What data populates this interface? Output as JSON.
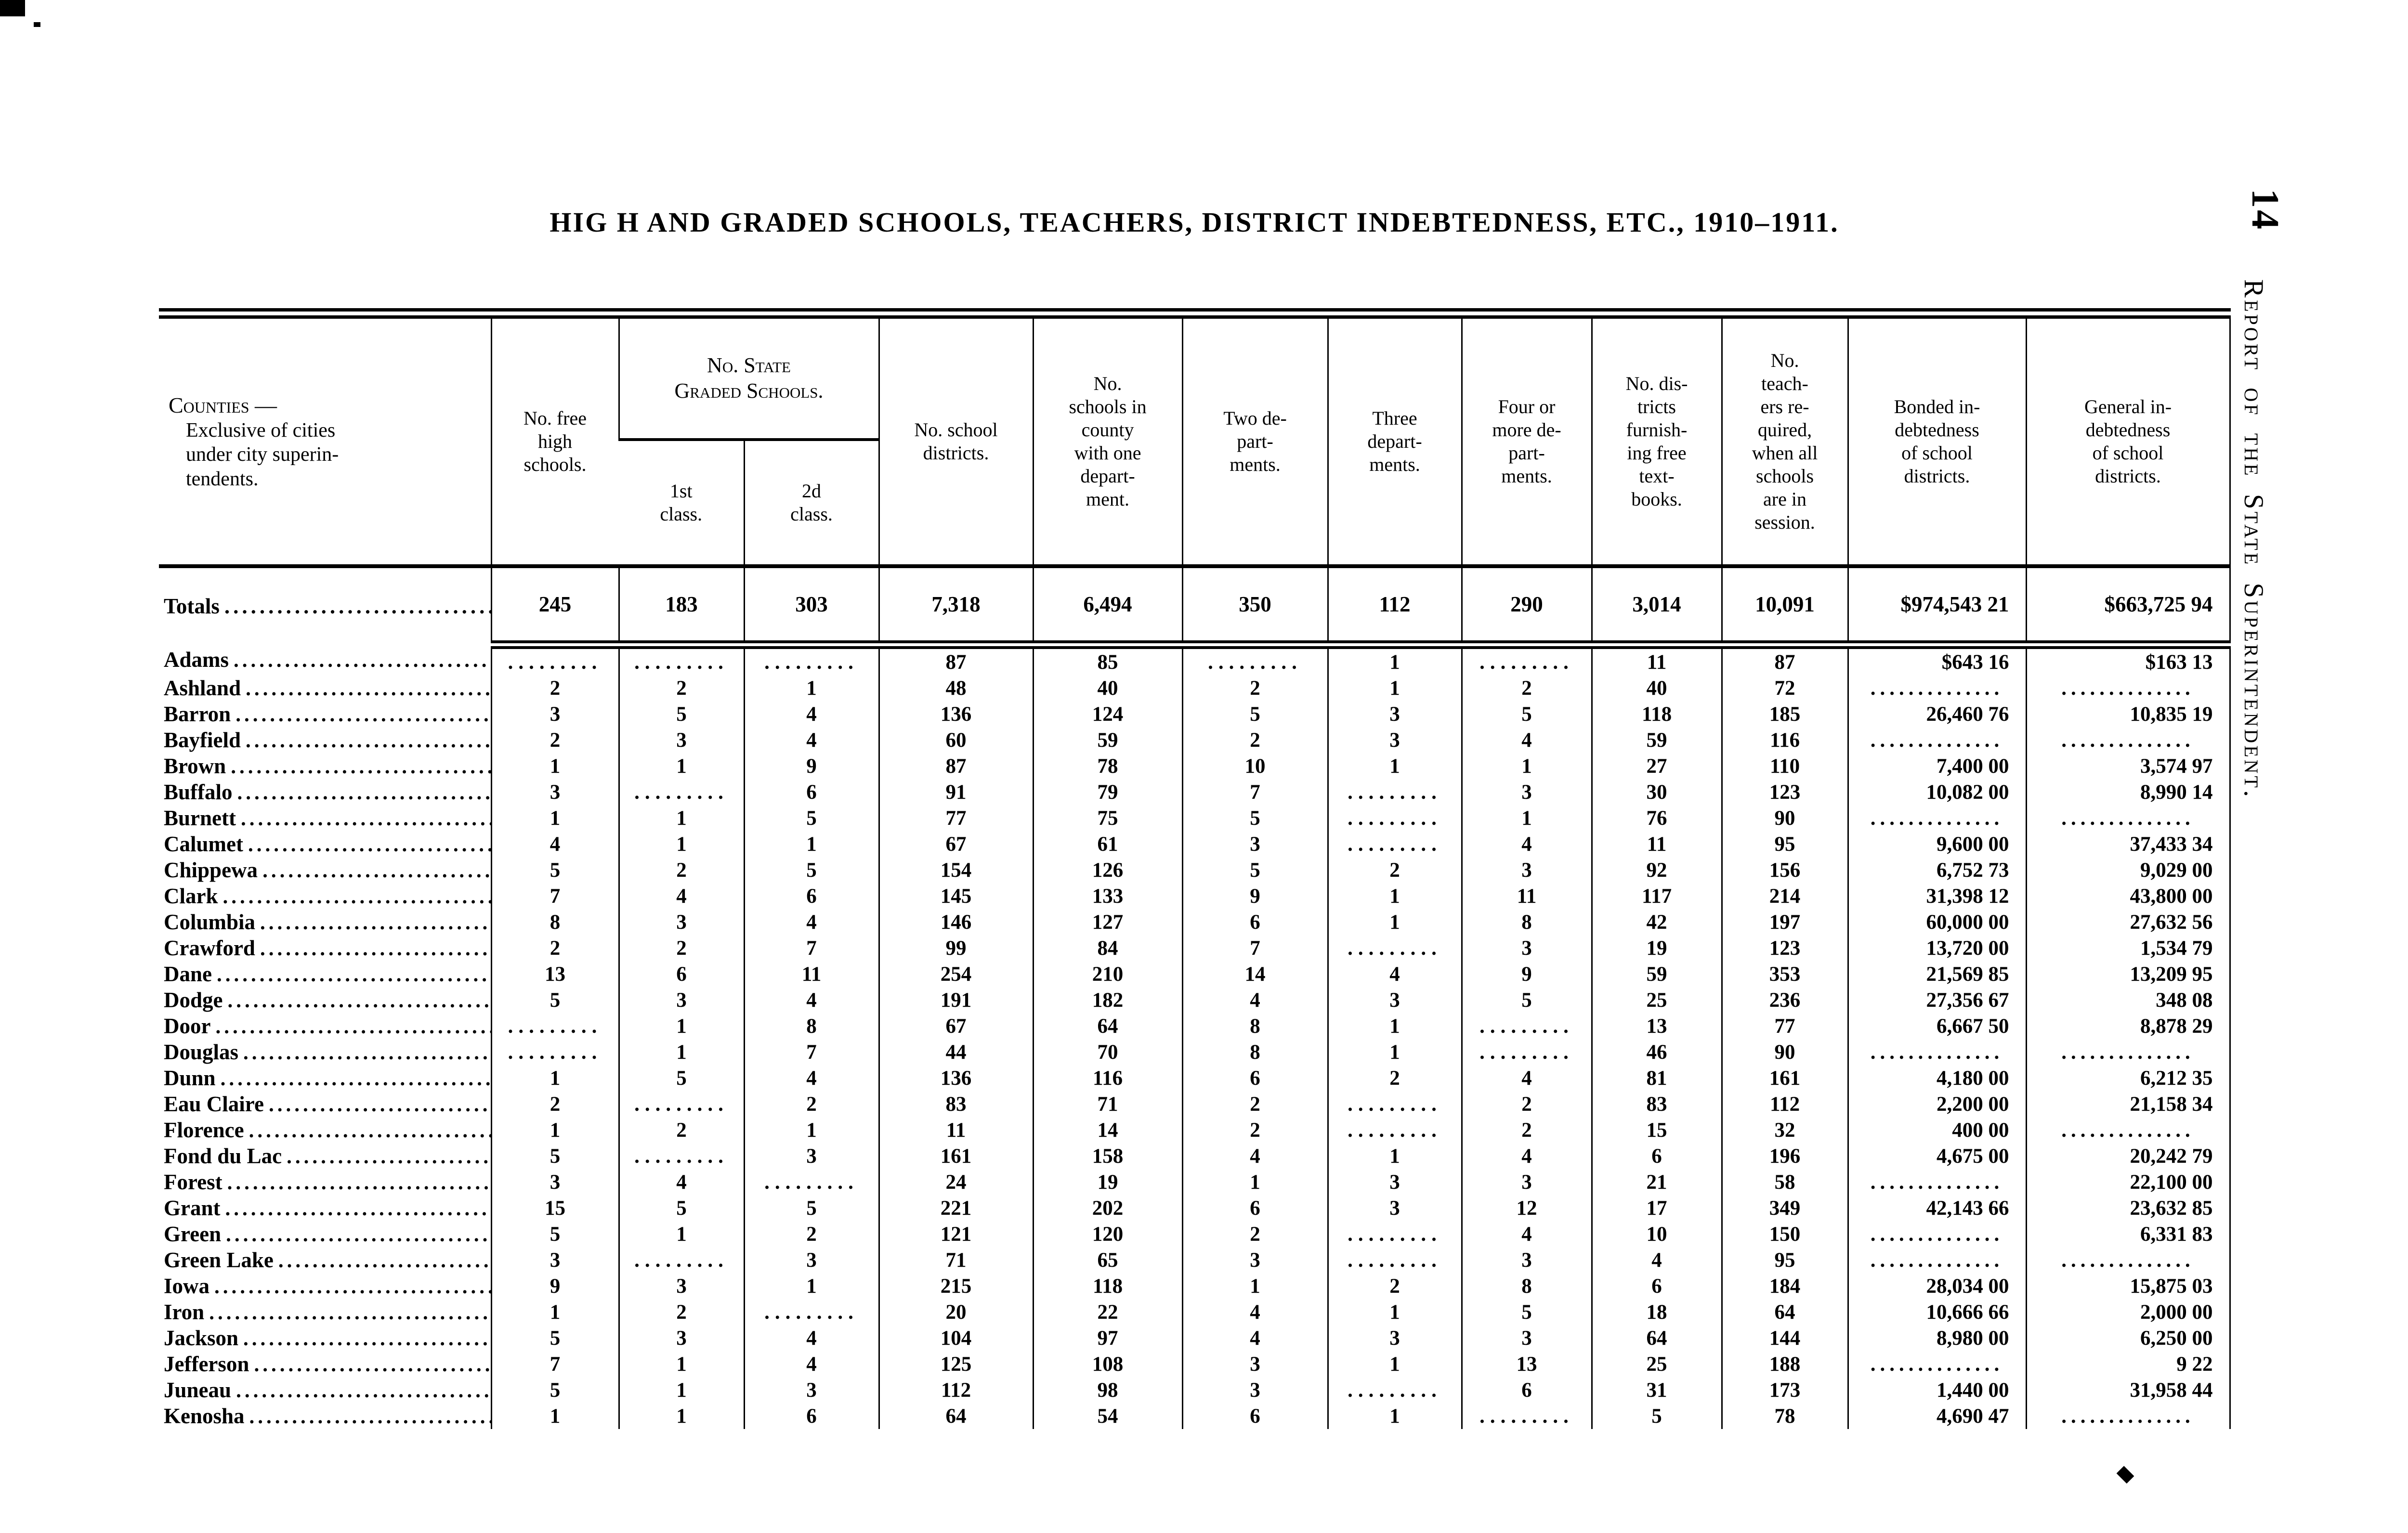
{
  "page": {
    "title": "HIG H AND GRADED SCHOOLS, TEACHERS, DISTRICT INDEBTEDNESS, ETC., 1910–1911.",
    "page_number": "14",
    "side_caption": "Report of the State Superintendent."
  },
  "table": {
    "header": {
      "counties": "Counties —\nExclusive of cities\nunder city superin-\ntendents.",
      "free_high": "No. free\nhigh\nschools.",
      "state_graded_group": "No. State\nGraded Schools.",
      "first_class": "1st\nclass.",
      "second_class": "2d\nclass.",
      "districts": "No. school\ndistricts.",
      "one_dept": "No.\nschools in\ncounty\nwith one\ndepart-\nment.",
      "two_dept": "Two de-\npart-\nments.",
      "three_dept": "Three\ndepart-\nments.",
      "four_plus": "Four or\nmore de-\npart-\nments.",
      "textbooks": "No. dis-\ntricts\nfurnish-\ning free\ntext-\nbooks.",
      "teachers": "No.\nteach-\ners re-\nquired,\nwhen all\nschools\nare in\nsession.",
      "bonded": "Bonded in-\ndebtedness\nof school\ndistricts.",
      "general": "General in-\ndebtedness\nof school\ndistricts."
    },
    "totals": {
      "name": "Totals",
      "cells": [
        "245",
        "183",
        "303",
        "7,318",
        "6,494",
        "350",
        "112",
        "290",
        "3,014",
        "10,091",
        "$974,543 21",
        "$663,725 94"
      ]
    },
    "rows": [
      {
        "name": "Adams",
        "cells": [
          "",
          "",
          "",
          "87",
          "85",
          "",
          "1",
          "",
          "11",
          "87",
          "$643 16",
          "$163 13"
        ]
      },
      {
        "name": "Ashland",
        "cells": [
          "2",
          "2",
          "1",
          "48",
          "40",
          "2",
          "1",
          "2",
          "40",
          "72",
          "",
          ""
        ]
      },
      {
        "name": "Barron",
        "cells": [
          "3",
          "5",
          "4",
          "136",
          "124",
          "5",
          "3",
          "5",
          "118",
          "185",
          "26,460 76",
          "10,835 19"
        ]
      },
      {
        "name": "Bayfield",
        "cells": [
          "2",
          "3",
          "4",
          "60",
          "59",
          "2",
          "3",
          "4",
          "59",
          "116",
          "",
          ""
        ]
      },
      {
        "name": "Brown",
        "cells": [
          "1",
          "1",
          "9",
          "87",
          "78",
          "10",
          "1",
          "1",
          "27",
          "110",
          "7,400 00",
          "3,574 97"
        ]
      },
      {
        "name": "Buffalo",
        "cells": [
          "3",
          "",
          "6",
          "91",
          "79",
          "7",
          "",
          "3",
          "30",
          "123",
          "10,082 00",
          "8,990 14"
        ]
      },
      {
        "name": "Burnett",
        "cells": [
          "1",
          "1",
          "5",
          "77",
          "75",
          "5",
          "",
          "1",
          "76",
          "90",
          "",
          ""
        ]
      },
      {
        "name": "Calumet",
        "cells": [
          "4",
          "1",
          "1",
          "67",
          "61",
          "3",
          "",
          "4",
          "11",
          "95",
          "9,600 00",
          "37,433 34"
        ]
      },
      {
        "name": "Chippewa",
        "cells": [
          "5",
          "2",
          "5",
          "154",
          "126",
          "5",
          "2",
          "3",
          "92",
          "156",
          "6,752 73",
          "9,029 00"
        ]
      },
      {
        "name": "Clark",
        "cells": [
          "7",
          "4",
          "6",
          "145",
          "133",
          "9",
          "1",
          "11",
          "117",
          "214",
          "31,398 12",
          "43,800 00"
        ]
      },
      {
        "name": "Columbia",
        "cells": [
          "8",
          "3",
          "4",
          "146",
          "127",
          "6",
          "1",
          "8",
          "42",
          "197",
          "60,000 00",
          "27,632 56"
        ]
      },
      {
        "name": "Crawford",
        "cells": [
          "2",
          "2",
          "7",
          "99",
          "84",
          "7",
          "",
          "3",
          "19",
          "123",
          "13,720 00",
          "1,534 79"
        ]
      },
      {
        "name": "Dane",
        "cells": [
          "13",
          "6",
          "11",
          "254",
          "210",
          "14",
          "4",
          "9",
          "59",
          "353",
          "21,569 85",
          "13,209 95"
        ]
      },
      {
        "name": "Dodge",
        "cells": [
          "5",
          "3",
          "4",
          "191",
          "182",
          "4",
          "3",
          "5",
          "25",
          "236",
          "27,356 67",
          "348 08"
        ]
      },
      {
        "name": "Door",
        "cells": [
          "",
          "1",
          "8",
          "67",
          "64",
          "8",
          "1",
          "",
          "13",
          "77",
          "6,667 50",
          "8,878 29"
        ]
      },
      {
        "name": "Douglas",
        "cells": [
          "",
          "1",
          "7",
          "44",
          "70",
          "8",
          "1",
          "",
          "46",
          "90",
          "",
          ""
        ]
      },
      {
        "name": "Dunn",
        "cells": [
          "1",
          "5",
          "4",
          "136",
          "116",
          "6",
          "2",
          "4",
          "81",
          "161",
          "4,180 00",
          "6,212 35"
        ]
      },
      {
        "name": "Eau Claire",
        "cells": [
          "2",
          "",
          "2",
          "83",
          "71",
          "2",
          "",
          "2",
          "83",
          "112",
          "2,200 00",
          "21,158 34"
        ]
      },
      {
        "name": "Florence",
        "cells": [
          "1",
          "2",
          "1",
          "11",
          "14",
          "2",
          "",
          "2",
          "15",
          "32",
          "400 00",
          ""
        ]
      },
      {
        "name": "Fond du Lac",
        "cells": [
          "5",
          "",
          "3",
          "161",
          "158",
          "4",
          "1",
          "4",
          "6",
          "196",
          "4,675 00",
          "20,242 79"
        ]
      },
      {
        "name": "Forest",
        "cells": [
          "3",
          "4",
          "",
          "24",
          "19",
          "1",
          "3",
          "3",
          "21",
          "58",
          "",
          "22,100 00"
        ]
      },
      {
        "name": "Grant",
        "cells": [
          "15",
          "5",
          "5",
          "221",
          "202",
          "6",
          "3",
          "12",
          "17",
          "349",
          "42,143 66",
          "23,632 85"
        ]
      },
      {
        "name": "Green",
        "cells": [
          "5",
          "1",
          "2",
          "121",
          "120",
          "2",
          "",
          "4",
          "10",
          "150",
          "",
          "6,331 83"
        ]
      },
      {
        "name": "Green Lake",
        "cells": [
          "3",
          "",
          "3",
          "71",
          "65",
          "3",
          "",
          "3",
          "4",
          "95",
          "",
          ""
        ]
      },
      {
        "name": "Iowa",
        "cells": [
          "9",
          "3",
          "1",
          "215",
          "118",
          "1",
          "2",
          "8",
          "6",
          "184",
          "28,034 00",
          "15,875 03"
        ]
      },
      {
        "name": "Iron",
        "cells": [
          "1",
          "2",
          "",
          "20",
          "22",
          "4",
          "1",
          "5",
          "18",
          "64",
          "10,666 66",
          "2,000 00"
        ]
      },
      {
        "name": "Jackson",
        "cells": [
          "5",
          "3",
          "4",
          "104",
          "97",
          "4",
          "3",
          "3",
          "64",
          "144",
          "8,980 00",
          "6,250 00"
        ]
      },
      {
        "name": "Jefferson",
        "cells": [
          "7",
          "1",
          "4",
          "125",
          "108",
          "3",
          "1",
          "13",
          "25",
          "188",
          "",
          "9 22"
        ]
      },
      {
        "name": "Juneau",
        "cells": [
          "5",
          "1",
          "3",
          "112",
          "98",
          "3",
          "",
          "6",
          "31",
          "173",
          "1,440 00",
          "31,958 44"
        ]
      },
      {
        "name": "Kenosha",
        "cells": [
          "1",
          "1",
          "6",
          "64",
          "54",
          "6",
          "1",
          "",
          "5",
          "78",
          "4,690 47",
          ""
        ]
      }
    ]
  }
}
